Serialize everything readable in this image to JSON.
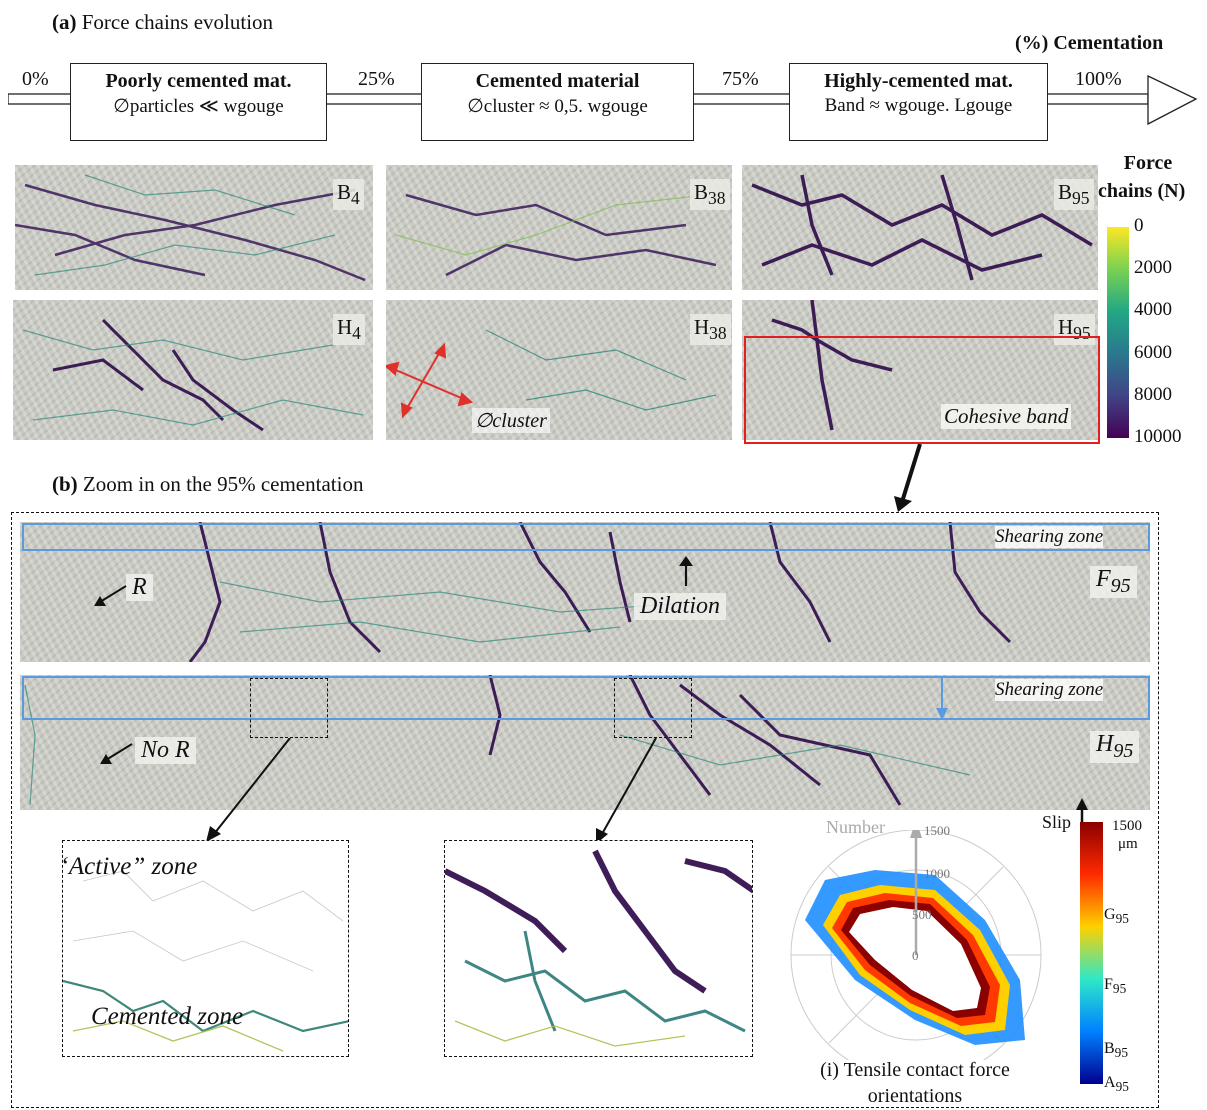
{
  "section_a": {
    "letter": "(a)",
    "title": "Force chains evolution"
  },
  "cementation_label": "(%) Cementation",
  "percent_marks": [
    "0%",
    "25%",
    "75%",
    "100%"
  ],
  "stages": [
    {
      "title": "Poorly cemented mat.",
      "formula": "∅particles ≪ wgouge"
    },
    {
      "title": "Cemented material",
      "formula": "∅cluster ≈ 0,5. wgouge"
    },
    {
      "title": "Highly-cemented mat.",
      "formula": "Band ≈ wgouge. Lgouge"
    }
  ],
  "panels": [
    {
      "label": "B",
      "sub": "4"
    },
    {
      "label": "B",
      "sub": "38"
    },
    {
      "label": "B",
      "sub": "95"
    },
    {
      "label": "H",
      "sub": "4"
    },
    {
      "label": "H",
      "sub": "38"
    },
    {
      "label": "H",
      "sub": "95"
    }
  ],
  "cluster_label": "∅cluster",
  "cohesive_band_label": "Cohesive band",
  "force_colorbar": {
    "title_line1": "Force",
    "title_line2": "chains (N)",
    "ticks": [
      "0",
      "2000",
      "4000",
      "6000",
      "8000",
      "10000"
    ],
    "colors": [
      "#fde725",
      "#7ad151",
      "#22a884",
      "#2a788e",
      "#414487",
      "#440154"
    ]
  },
  "section_b": {
    "letter": "(b)",
    "title": "Zoom in on the 95% cementation"
  },
  "zoom_panels": [
    {
      "shearing": "Shearing zone",
      "label": "F",
      "sub": "95",
      "note": "R",
      "dilation": "Dilation"
    },
    {
      "shearing": "Shearing zone",
      "label": "H",
      "sub": "95",
      "note": "No R"
    }
  ],
  "active_zone": "“Active” zone",
  "cemented_zone": "Cemented zone",
  "polar": {
    "axis_label": "Number",
    "rings": [
      "1500",
      "1000",
      "500",
      "0"
    ],
    "caption_line1": "(i) Tensile contact force",
    "caption_line2": "orientations"
  },
  "slip_bar": {
    "title": "Slip",
    "max": "1500",
    "unit": "μm",
    "marks": [
      {
        "label": "G",
        "sub": "95"
      },
      {
        "label": "F",
        "sub": "95"
      },
      {
        "label": "B",
        "sub": "95"
      },
      {
        "label": "A",
        "sub": "95"
      }
    ],
    "colors": [
      "#8b0000",
      "#ff2a00",
      "#ffd000",
      "#2ee8c8",
      "#0080ff",
      "#00008f"
    ]
  }
}
